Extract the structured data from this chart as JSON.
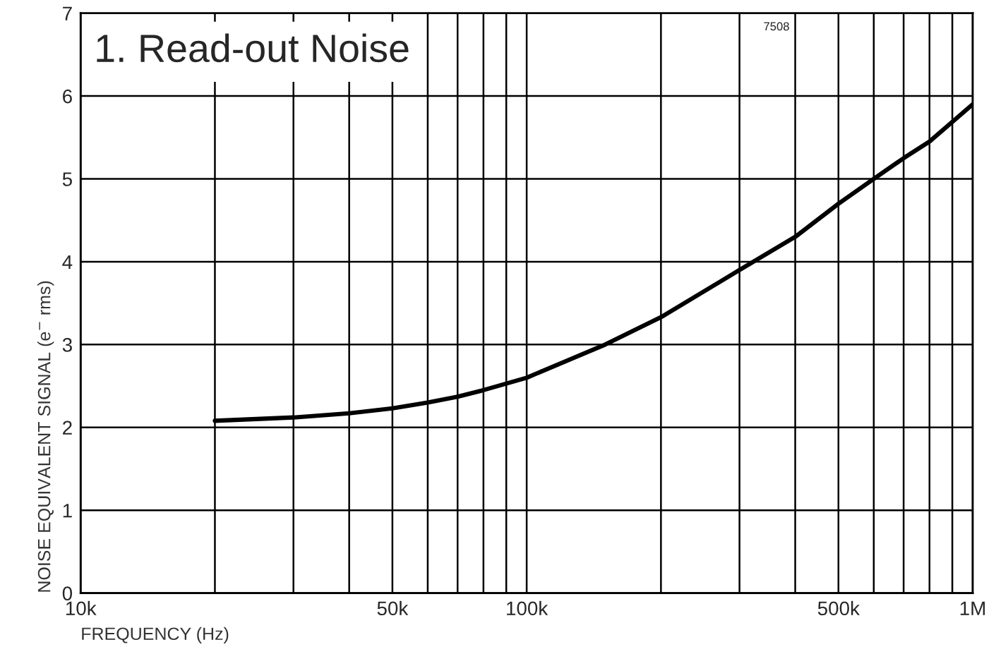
{
  "chart_data": {
    "type": "line",
    "title": "1. Read-out Noise",
    "xlabel": "FREQUENCY (Hz)",
    "ylabel": "NOISE EQUIVALENT SIGNAL (e$^{−}$ rms)",
    "annotations": [
      "7508"
    ],
    "series": [
      {
        "color": "#000000",
        "x": [
          20000,
          30000,
          40000,
          50000,
          60000,
          70000,
          80000,
          100000,
          150000,
          200000,
          300000,
          400000,
          500000,
          600000,
          700000,
          800000,
          1000000
        ],
        "values": [
          2.08,
          2.12,
          2.17,
          2.23,
          2.3,
          2.37,
          2.45,
          2.6,
          3.0,
          3.33,
          3.9,
          4.3,
          4.7,
          5.0,
          5.25,
          5.45,
          5.9
        ]
      }
    ],
    "log": "x",
    "xlim": [
      10000,
      1000000
    ],
    "ylim": [
      0,
      7
    ],
    "xticks": [
      {
        "value": 10000,
        "label": "10k"
      },
      {
        "value": 20000,
        "label": null
      },
      {
        "value": 30000,
        "label": null
      },
      {
        "value": 40000,
        "label": null
      },
      {
        "value": 50000,
        "label": "50k"
      },
      {
        "value": 60000,
        "label": null
      },
      {
        "value": 70000,
        "label": null
      },
      {
        "value": 80000,
        "label": null
      },
      {
        "value": 90000,
        "label": null
      },
      {
        "value": 100000,
        "label": "100k"
      },
      {
        "value": 200000,
        "label": null
      },
      {
        "value": 300000,
        "label": null
      },
      {
        "value": 400000,
        "label": null
      },
      {
        "value": 500000,
        "label": "500k"
      },
      {
        "value": 600000,
        "label": null
      },
      {
        "value": 700000,
        "label": null
      },
      {
        "value": 800000,
        "label": null
      },
      {
        "value": 900000,
        "label": null
      },
      {
        "value": 1000000,
        "label": "1M"
      }
    ],
    "yticks": [
      0,
      1,
      2,
      3,
      4,
      5,
      6,
      7
    ],
    "grid": true,
    "marker": "none",
    "line_style": "solid"
  }
}
